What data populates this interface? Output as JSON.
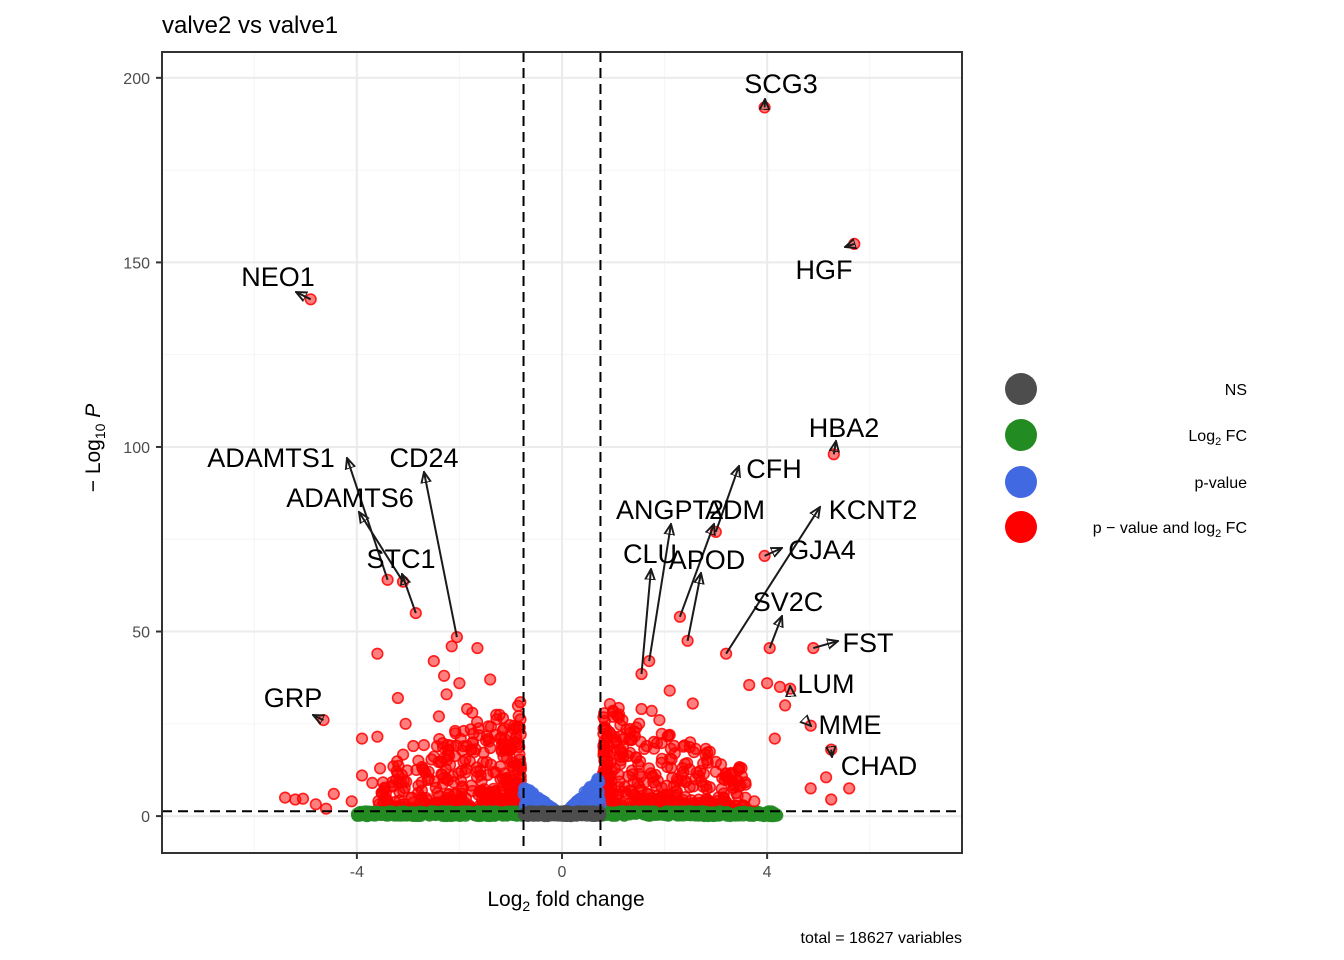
{
  "chart_data": {
    "type": "scatter",
    "title": "valve2 vs valve1",
    "xlabel": "Log2 fold change",
    "ylabel": "− Log10 P",
    "xlim": [
      -7.8,
      7.8
    ],
    "ylim": [
      -10,
      207
    ],
    "x_ticks": [
      -4,
      0,
      4
    ],
    "y_ticks": [
      0,
      50,
      100,
      150,
      200
    ],
    "grid": true,
    "legend_position": "right",
    "fc_cutoff": 0.75,
    "p_cutoff_neglog10": 1.3,
    "caption": "total = 18627 variables",
    "legend": [
      {
        "key": "NS",
        "label": "NS",
        "color": "#4d4d4d"
      },
      {
        "key": "FC",
        "label": "Log2 FC",
        "color": "#228b22"
      },
      {
        "key": "P",
        "label": "p-value",
        "color": "#4169e1"
      },
      {
        "key": "FC_P",
        "label": "p − value and log2 FC",
        "color": "#ff0000"
      }
    ],
    "labeled_genes": [
      {
        "gene": "SCG3",
        "x": 3.95,
        "y": 192
      },
      {
        "gene": "HGF",
        "x": 5.7,
        "y": 155
      },
      {
        "gene": "NEO1",
        "x": -4.9,
        "y": 140
      },
      {
        "gene": "HBA2",
        "x": 5.3,
        "y": 98
      },
      {
        "gene": "ADAMTS1",
        "x": -3.4,
        "y": 64
      },
      {
        "gene": "CD24",
        "x": -2.05,
        "y": 48.5
      },
      {
        "gene": "ADAMTS6",
        "x": -3.1,
        "y": 63.5
      },
      {
        "gene": "STC1",
        "x": -2.85,
        "y": 55
      },
      {
        "gene": "CFH",
        "x": 3.0,
        "y": 77
      },
      {
        "gene": "ANGPT2",
        "x": 1.7,
        "y": 42
      },
      {
        "gene": "ADM",
        "x": 2.3,
        "y": 54
      },
      {
        "gene": "KCNT2",
        "x": 3.2,
        "y": 44
      },
      {
        "gene": "CLU",
        "x": 1.55,
        "y": 38.5
      },
      {
        "gene": "APOD",
        "x": 2.45,
        "y": 47.5
      },
      {
        "gene": "GJA4",
        "x": 3.95,
        "y": 70.5
      },
      {
        "gene": "SV2C",
        "x": 4.05,
        "y": 45.5
      },
      {
        "gene": "FST",
        "x": 4.9,
        "y": 45.5
      },
      {
        "gene": "LUM",
        "x": 4.45,
        "y": 34.5
      },
      {
        "gene": "MME",
        "x": 4.85,
        "y": 24.5
      },
      {
        "gene": "CHAD",
        "x": 5.25,
        "y": 18
      },
      {
        "gene": "GRP",
        "x": -4.65,
        "y": 26
      }
    ],
    "other_points_fc_p": [
      [
        -5.4,
        5
      ],
      [
        -5.2,
        4.5
      ],
      [
        -5.05,
        4.7
      ],
      [
        -4.8,
        3.2
      ],
      [
        -4.6,
        2
      ],
      [
        -4.45,
        6
      ],
      [
        -4.1,
        4
      ],
      [
        -3.9,
        21
      ],
      [
        -3.6,
        21.5
      ],
      [
        -3.9,
        11
      ],
      [
        -3.7,
        9
      ],
      [
        -3.5,
        6
      ],
      [
        -3.3,
        8
      ],
      [
        -3.2,
        32
      ],
      [
        -3.05,
        25
      ],
      [
        -2.9,
        19
      ],
      [
        -2.8,
        15
      ],
      [
        -2.6,
        12
      ],
      [
        -3.6,
        44
      ],
      [
        -2.4,
        27
      ],
      [
        -2.3,
        38
      ],
      [
        -2.5,
        42
      ],
      [
        -2.15,
        46
      ],
      [
        -2.25,
        33
      ],
      [
        -2.0,
        36
      ],
      [
        -1.85,
        29
      ],
      [
        -1.75,
        28
      ],
      [
        -1.65,
        45.5
      ],
      [
        -1.4,
        37
      ],
      [
        -1.3,
        22
      ],
      [
        -1.2,
        10
      ],
      [
        -1.0,
        18
      ],
      [
        1.45,
        24
      ],
      [
        1.55,
        29
      ],
      [
        1.65,
        19
      ],
      [
        1.75,
        28.5
      ],
      [
        1.9,
        26
      ],
      [
        2.1,
        22
      ],
      [
        2.2,
        17
      ],
      [
        2.35,
        13
      ],
      [
        2.5,
        20
      ],
      [
        2.6,
        10
      ],
      [
        2.75,
        8
      ],
      [
        3.1,
        14
      ],
      [
        3.25,
        10
      ],
      [
        2.1,
        34
      ],
      [
        2.55,
        30.5
      ],
      [
        3.0,
        12
      ],
      [
        3.5,
        13
      ],
      [
        3.65,
        35.5
      ],
      [
        4.0,
        36
      ],
      [
        4.35,
        30
      ],
      [
        4.15,
        21
      ],
      [
        4.25,
        35
      ],
      [
        5.15,
        10.5
      ],
      [
        5.6,
        7.5
      ],
      [
        5.25,
        4.5
      ],
      [
        4.85,
        7.5
      ],
      [
        3.75,
        4
      ]
    ],
    "dense_clusters": [
      {
        "color_key": "FC_P",
        "x_range": [
          -3.6,
          -0.8
        ],
        "y_max": 30,
        "count": 420
      },
      {
        "color_key": "FC_P",
        "x_range": [
          0.8,
          3.6
        ],
        "y_max": 30,
        "count": 420
      },
      {
        "color_key": "FC",
        "x_range": [
          -4.0,
          -0.75
        ],
        "y_max": 1.3,
        "count": 300
      },
      {
        "color_key": "FC",
        "x_range": [
          0.75,
          4.2
        ],
        "y_max": 1.3,
        "count": 300
      },
      {
        "color_key": "P",
        "x_range": [
          -0.75,
          -0.1
        ],
        "y_max": 7,
        "count": 120
      },
      {
        "color_key": "P",
        "x_range": [
          0.1,
          0.75
        ],
        "y_max": 10,
        "count": 120
      },
      {
        "color_key": "NS",
        "x_range": [
          -0.75,
          0.75
        ],
        "y_max": 1.3,
        "count": 260
      }
    ]
  }
}
